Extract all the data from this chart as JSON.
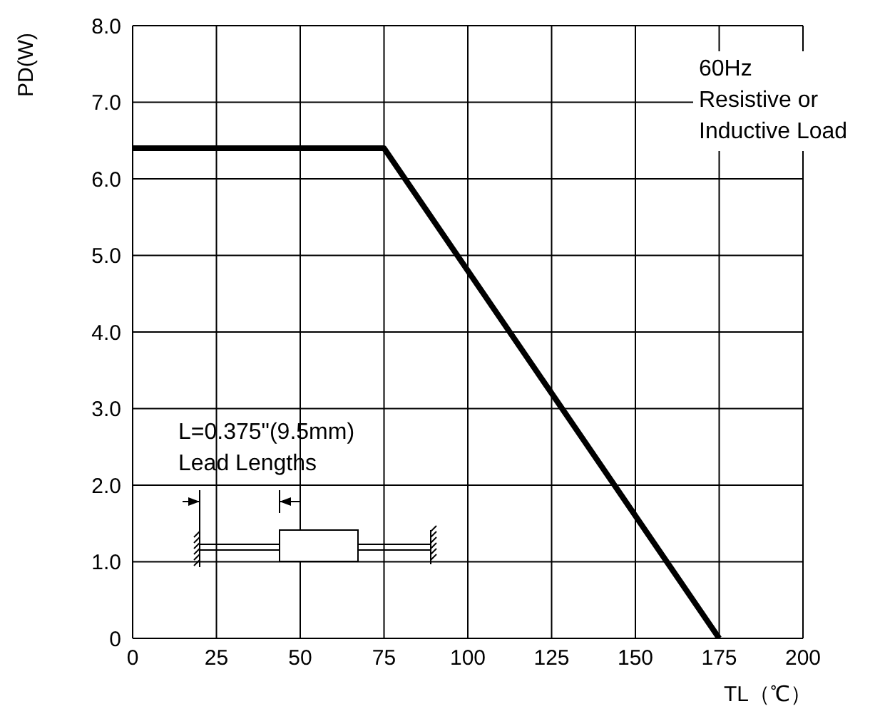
{
  "chart_data": {
    "type": "line",
    "xlabel": "TL（℃）",
    "ylabel": "PD(W)",
    "x": [
      0,
      75,
      175
    ],
    "series": [
      {
        "color": "#000000",
        "values": [
          6.4,
          6.4,
          0
        ]
      }
    ],
    "xlim": [
      0,
      200
    ],
    "xticks": [
      0,
      25,
      50,
      75,
      100,
      125,
      150,
      175,
      200
    ],
    "ylim": [
      0,
      8
    ],
    "yticks": [
      0,
      {
        "value": 1,
        "label": "1.0"
      },
      {
        "value": 2,
        "label": "2.0"
      },
      {
        "value": 3,
        "label": "3.0"
      },
      {
        "value": 4,
        "label": "4.0"
      },
      {
        "value": 5,
        "label": "5.0"
      },
      {
        "value": 6,
        "label": "6.0"
      },
      {
        "value": 7,
        "label": "7.0"
      },
      {
        "value": 8,
        "label": "8.0"
      }
    ],
    "grid": true,
    "marker": "none",
    "line_style": "solid",
    "legend": false,
    "annotations": [
      "60Hz\nResistive or\nInductive Load",
      "L=0.375\"(9.5mm)\nLead Lengths"
    ]
  }
}
